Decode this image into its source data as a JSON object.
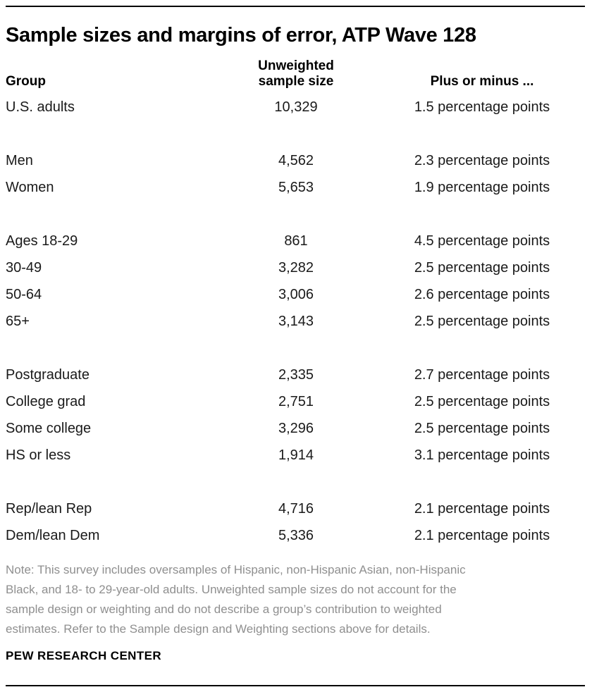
{
  "chart_data": {
    "type": "table",
    "title": "Sample sizes and margins of error, ATP Wave 128",
    "columns": [
      "Group",
      "Unweighted sample size",
      "Plus or minus ..."
    ],
    "header": {
      "group": "Group",
      "sample_size_line1": "Unweighted",
      "sample_size_line2": "sample size",
      "moe": "Plus or minus ..."
    },
    "sections": [
      {
        "rows": [
          {
            "group": "U.S. adults",
            "unweighted_n": "10,329",
            "margin_of_error": "1.5 percentage points"
          }
        ]
      },
      {
        "rows": [
          {
            "group": "Men",
            "unweighted_n": "4,562",
            "margin_of_error": "2.3 percentage points"
          },
          {
            "group": "Women",
            "unweighted_n": "5,653",
            "margin_of_error": "1.9 percentage points"
          }
        ]
      },
      {
        "rows": [
          {
            "group": "Ages 18-29",
            "unweighted_n": "861",
            "margin_of_error": "4.5 percentage points"
          },
          {
            "group": "30-49",
            "unweighted_n": "3,282",
            "margin_of_error": "2.5 percentage points"
          },
          {
            "group": "50-64",
            "unweighted_n": "3,006",
            "margin_of_error": "2.6 percentage points"
          },
          {
            "group": "65+",
            "unweighted_n": "3,143",
            "margin_of_error": "2.5 percentage points"
          }
        ]
      },
      {
        "rows": [
          {
            "group": "Postgraduate",
            "unweighted_n": "2,335",
            "margin_of_error": "2.7 percentage points"
          },
          {
            "group": "College grad",
            "unweighted_n": "2,751",
            "margin_of_error": "2.5 percentage points"
          },
          {
            "group": "Some college",
            "unweighted_n": "3,296",
            "margin_of_error": "2.5 percentage points"
          },
          {
            "group": "HS or less",
            "unweighted_n": "1,914",
            "margin_of_error": "3.1 percentage points"
          }
        ]
      },
      {
        "rows": [
          {
            "group": "Rep/lean Rep",
            "unweighted_n": "4,716",
            "margin_of_error": "2.1 percentage points"
          },
          {
            "group": "Dem/lean Dem",
            "unweighted_n": "5,336",
            "margin_of_error": "2.1 percentage points"
          }
        ]
      }
    ]
  },
  "page": {
    "note": "Note: This survey includes oversamples of Hispanic, non-Hispanic Asian, non-Hispanic\nBlack, and 18- to 29-year-old adults. Unweighted sample sizes do not account for the\nsample design or weighting and do not describe a group’s contribution to weighted\nestimates. Refer to the Sample design and Weighting sections above for details.",
    "footer": "PEW RESEARCH CENTER"
  },
  "colors": {
    "background": "#ffffff",
    "title_text": "#000000",
    "body_text": "#1a1a1a",
    "note_text": "#8f8f8f",
    "rule": "#000000"
  }
}
